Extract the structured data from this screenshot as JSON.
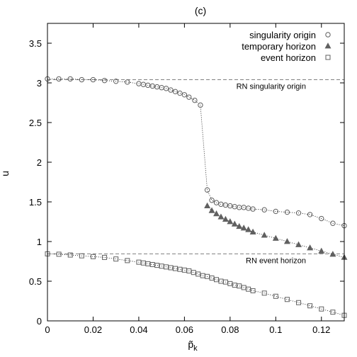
{
  "chart_data": {
    "type": "scatter",
    "title": "(c)",
    "xlabel": "p̃",
    "xlabel_sub": "k",
    "ylabel": "u",
    "xlim": [
      0,
      0.13
    ],
    "ylim": [
      0,
      3.75
    ],
    "xticks": [
      0,
      0.02,
      0.04,
      0.06,
      0.08,
      0.1,
      0.12
    ],
    "xtick_labels": [
      "0",
      "0.02",
      "0.04",
      "0.06",
      "0.08",
      "0.1",
      "0.12"
    ],
    "yticks": [
      0,
      0.5,
      1,
      1.5,
      2,
      2.5,
      3,
      3.5
    ],
    "ytick_labels": [
      "0",
      "0.5",
      "1",
      "1.5",
      "2",
      "2.5",
      "3",
      "3.5"
    ],
    "grid": false,
    "legend_position": "top-right",
    "colors": {
      "axis": "#000000",
      "marker": "#606060",
      "curve": "#000000",
      "reference": "#808080"
    },
    "reference_lines": [
      {
        "label": "RN singularity origin",
        "y": 3.04
      },
      {
        "label": "RN event horizon",
        "y": 0.845
      }
    ],
    "series": [
      {
        "name": "singularity origin",
        "marker": "circle",
        "x": [
          0,
          0.005,
          0.01,
          0.015,
          0.02,
          0.025,
          0.03,
          0.035,
          0.04,
          0.042,
          0.044,
          0.046,
          0.048,
          0.05,
          0.052,
          0.054,
          0.056,
          0.058,
          0.06,
          0.062,
          0.0645,
          0.067,
          0.07,
          0.072,
          0.074,
          0.076,
          0.078,
          0.08,
          0.082,
          0.084,
          0.086,
          0.088,
          0.09,
          0.095,
          0.1,
          0.105,
          0.11,
          0.115,
          0.12,
          0.125,
          0.13
        ],
        "y": [
          3.05,
          3.05,
          3.05,
          3.04,
          3.04,
          3.03,
          3.02,
          3.01,
          2.99,
          2.98,
          2.97,
          2.96,
          2.95,
          2.94,
          2.93,
          2.91,
          2.89,
          2.87,
          2.85,
          2.82,
          2.78,
          2.72,
          1.65,
          1.52,
          1.49,
          1.47,
          1.46,
          1.45,
          1.44,
          1.43,
          1.43,
          1.42,
          1.41,
          1.4,
          1.38,
          1.37,
          1.36,
          1.34,
          1.29,
          1.23,
          1.2
        ]
      },
      {
        "name": "temporary horizon",
        "marker": "triangle",
        "x": [
          0.07,
          0.072,
          0.074,
          0.076,
          0.078,
          0.08,
          0.082,
          0.084,
          0.086,
          0.088,
          0.09,
          0.095,
          0.1,
          0.105,
          0.11,
          0.115,
          0.12,
          0.125,
          0.13
        ],
        "y": [
          1.45,
          1.39,
          1.35,
          1.31,
          1.28,
          1.25,
          1.22,
          1.19,
          1.17,
          1.15,
          1.12,
          1.08,
          1.04,
          1.0,
          0.96,
          0.92,
          0.88,
          0.84,
          0.8
        ]
      },
      {
        "name": "event horizon",
        "marker": "square",
        "x": [
          0,
          0.005,
          0.01,
          0.015,
          0.02,
          0.025,
          0.03,
          0.035,
          0.04,
          0.042,
          0.044,
          0.046,
          0.048,
          0.05,
          0.052,
          0.054,
          0.056,
          0.058,
          0.06,
          0.062,
          0.064,
          0.066,
          0.068,
          0.07,
          0.072,
          0.074,
          0.076,
          0.078,
          0.08,
          0.082,
          0.084,
          0.086,
          0.088,
          0.09,
          0.095,
          0.1,
          0.105,
          0.11,
          0.115,
          0.12,
          0.125,
          0.13
        ],
        "y": [
          0.845,
          0.84,
          0.83,
          0.82,
          0.81,
          0.8,
          0.78,
          0.76,
          0.74,
          0.73,
          0.72,
          0.71,
          0.7,
          0.69,
          0.68,
          0.67,
          0.66,
          0.65,
          0.64,
          0.63,
          0.61,
          0.59,
          0.57,
          0.56,
          0.54,
          0.52,
          0.5,
          0.49,
          0.47,
          0.45,
          0.44,
          0.42,
          0.4,
          0.38,
          0.35,
          0.31,
          0.27,
          0.23,
          0.19,
          0.15,
          0.11,
          0.07
        ]
      }
    ]
  }
}
